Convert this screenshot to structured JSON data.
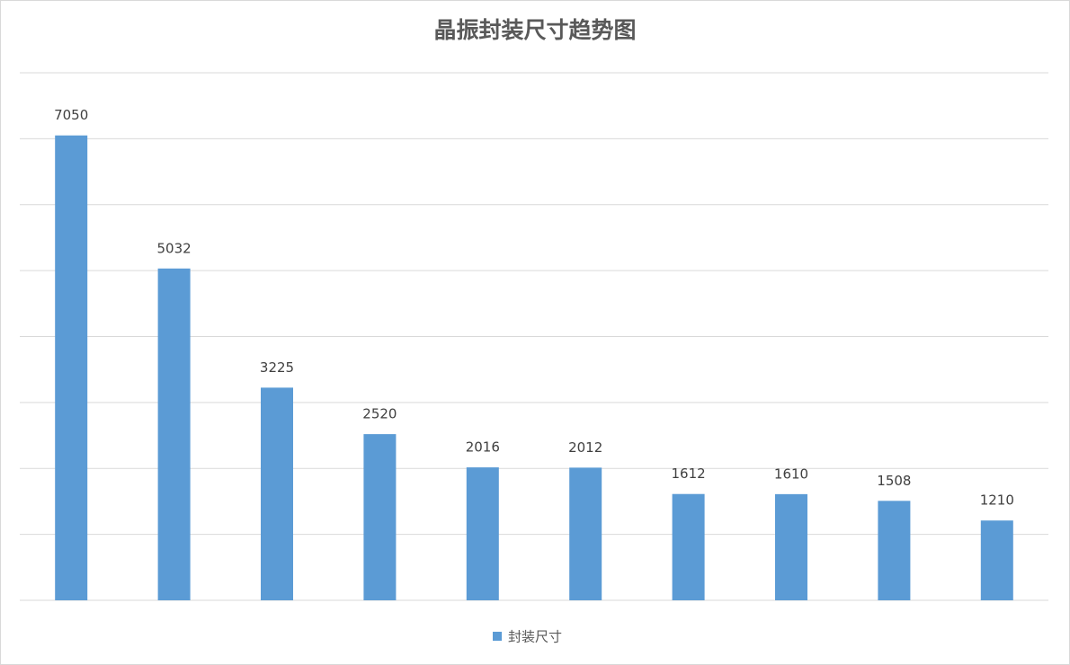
{
  "chart_data": {
    "type": "bar",
    "title": "晶振封装尺寸趋势图",
    "series": [
      {
        "name": "封装尺寸",
        "color": "#5b9bd5",
        "values": [
          7050,
          5032,
          3225,
          2520,
          2016,
          2012,
          1612,
          1610,
          1508,
          1210
        ]
      }
    ],
    "ylim": [
      0,
      8000
    ],
    "yticks": [
      0,
      1000,
      2000,
      3000,
      4000,
      5000,
      6000,
      7000,
      8000
    ],
    "grid": true,
    "legend": "bottom"
  }
}
